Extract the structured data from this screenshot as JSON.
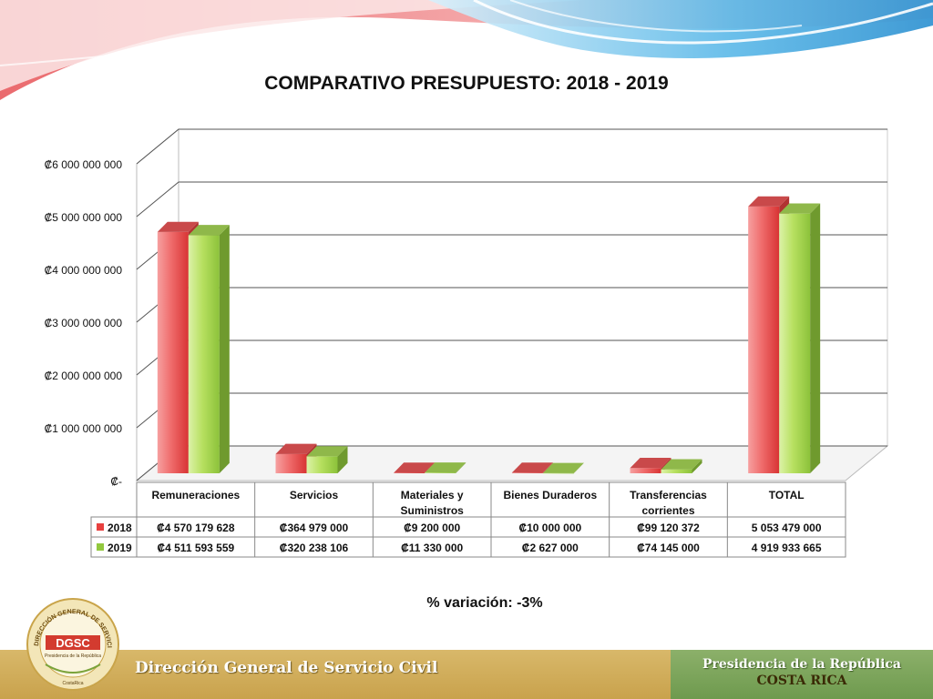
{
  "slide": {
    "title": "COMPARATIVO PRESUPUESTO: 2018 - 2019",
    "variation_text": "% variación: -3%"
  },
  "footer": {
    "left_text": "Dirección General de Servicio Civil",
    "right_line1": "Presidencia de la República",
    "right_line2": "COSTA RICA"
  },
  "logo": {
    "acronym": "DGSC",
    "ring_text": "DIRECCIÓN GENERAL DE SERVICIO CIVIL",
    "sub_text": "Presidencia de la República",
    "bottom_text": "CostaRica"
  },
  "colors": {
    "series_2018": "#e8403f",
    "series_2019": "#92c83e",
    "footer_left": "#d2b25e",
    "footer_right": "#7ea65c"
  },
  "chart_data": {
    "type": "bar",
    "title": "COMPARATIVO PRESUPUESTO: 2018 - 2019",
    "ylim": [
      0,
      6000000000
    ],
    "y_ticks": [
      0,
      1000000000,
      2000000000,
      3000000000,
      4000000000,
      5000000000,
      6000000000
    ],
    "y_tick_labels": [
      "₡-",
      "₡1 000 000 000",
      "₡2 000 000 000",
      "₡3 000 000 000",
      "₡4 000 000 000",
      "₡5 000 000 000",
      "₡6 000 000 000"
    ],
    "categories": [
      "Remuneraciones",
      "Servicios",
      "Materiales y Suministros",
      "Bienes Duraderos",
      "Transferencias corrientes",
      "TOTAL"
    ],
    "grid": true,
    "legend": "data-table",
    "series": [
      {
        "name": "2018",
        "values": [
          4570179628,
          364979000,
          9200000,
          10000000,
          99120372,
          5053479000
        ],
        "labels": [
          "₡4 570 179 628",
          "₡364 979 000",
          "₡9 200 000",
          "₡10 000 000",
          "₡99 120 372",
          "5 053 479 000"
        ]
      },
      {
        "name": "2019",
        "values": [
          4511593559,
          320238106,
          11330000,
          2627000,
          74145000,
          4919933665
        ],
        "labels": [
          "₡4 511 593 559",
          "₡320 238 106",
          "₡11 330 000",
          "₡2 627 000",
          "₡74 145 000",
          "4 919 933 665"
        ]
      }
    ]
  }
}
